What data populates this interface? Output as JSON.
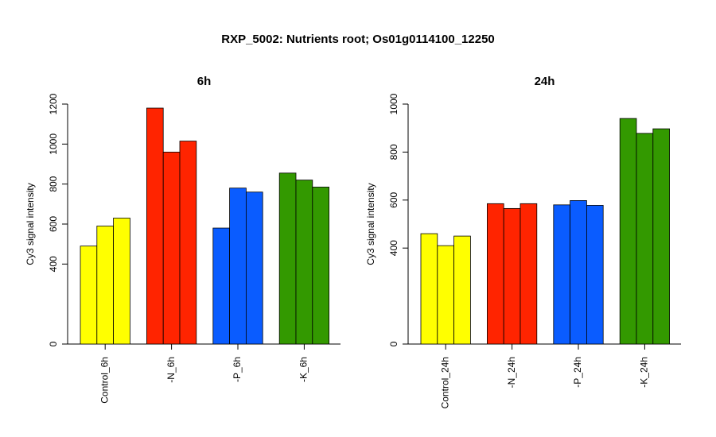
{
  "title": "RXP_5002: Nutrients root; Os01g0114100_12250",
  "colors": {
    "yellow": "#FFFF00",
    "red": "#FF2400",
    "blue": "#0A5CFF",
    "green": "#339900"
  },
  "chart_data": [
    {
      "type": "bar",
      "title": "6h",
      "ylabel": "Cy3 signal intensity",
      "ylim": [
        0,
        1200
      ],
      "yticks": [
        0,
        400,
        600,
        800,
        1000,
        1200
      ],
      "categories": [
        "Control_6h",
        "-N_6h",
        "-P_6h",
        "-K_6h"
      ],
      "group_colors": [
        "#FFFF00",
        "#FF2400",
        "#0A5CFF",
        "#339900"
      ],
      "values": [
        [
          490,
          590,
          630
        ],
        [
          1180,
          960,
          1015
        ],
        [
          580,
          780,
          760
        ],
        [
          855,
          820,
          785
        ]
      ]
    },
    {
      "type": "bar",
      "title": "24h",
      "ylabel": "Cy3 signal intensity",
      "ylim": [
        0,
        1000
      ],
      "yticks": [
        0,
        400,
        600,
        800,
        1000
      ],
      "categories": [
        "Control_24h",
        "-N_24h",
        "-P_24h",
        "-K_24h"
      ],
      "group_colors": [
        "#FFFF00",
        "#FF2400",
        "#0A5CFF",
        "#339900"
      ],
      "values": [
        [
          460,
          410,
          450
        ],
        [
          585,
          565,
          585
        ],
        [
          580,
          598,
          578
        ],
        [
          940,
          878,
          897
        ]
      ]
    }
  ]
}
